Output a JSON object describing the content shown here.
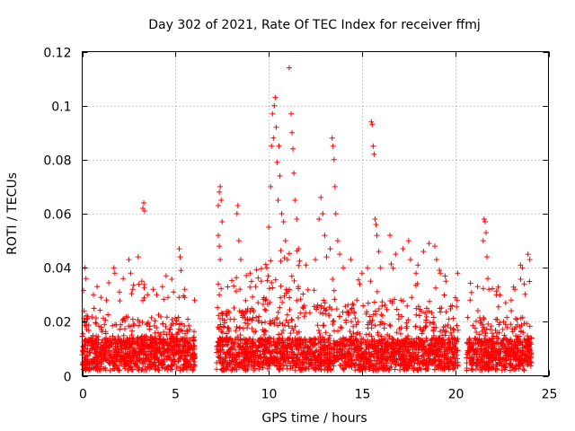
{
  "chart_data": {
    "type": "scatter",
    "title": "Day 302 of 2021, Rate Of TEC Index for receiver ffmj",
    "xlabel": "GPS time / hours",
    "ylabel": "ROTI / TECUs",
    "xlim": [
      0,
      25
    ],
    "ylim": [
      0,
      0.12
    ],
    "x_ticks": [
      0,
      5,
      10,
      15,
      20,
      25
    ],
    "x_tick_labels": [
      "0",
      "5",
      "10",
      "15",
      "20",
      "25"
    ],
    "y_ticks": [
      0,
      0.02,
      0.04,
      0.06,
      0.08,
      0.1,
      0.12
    ],
    "y_tick_labels": [
      "0",
      "0.02",
      "0.04",
      "0.06",
      "0.08",
      "0.1",
      "0.12"
    ],
    "grid": true,
    "marker": "plus",
    "color": "#ff0000",
    "series": [
      {
        "name": "ROTI",
        "segments": [
          {
            "start": 0.0,
            "end": 6.05
          },
          {
            "start": 7.2,
            "end": 20.15
          },
          {
            "start": 20.6,
            "end": 24.1
          }
        ],
        "points": [
          [
            0.1,
            0.024
          ],
          [
            0.15,
            0.04
          ],
          [
            0.2,
            0.036
          ],
          [
            0.3,
            0.022
          ],
          [
            0.6,
            0.03
          ],
          [
            0.8,
            0.033
          ],
          [
            1.0,
            0.029
          ],
          [
            1.3,
            0.028
          ],
          [
            1.7,
            0.04
          ],
          [
            1.75,
            0.038
          ],
          [
            2.0,
            0.031
          ],
          [
            2.2,
            0.036
          ],
          [
            2.5,
            0.043
          ],
          [
            2.6,
            0.038
          ],
          [
            2.7,
            0.032
          ],
          [
            3.0,
            0.044
          ],
          [
            3.2,
            0.035
          ],
          [
            3.25,
            0.062
          ],
          [
            3.3,
            0.064
          ],
          [
            3.35,
            0.061
          ],
          [
            3.5,
            0.03
          ],
          [
            3.8,
            0.032
          ],
          [
            4.0,
            0.03
          ],
          [
            4.3,
            0.033
          ],
          [
            4.5,
            0.037
          ],
          [
            4.6,
            0.029
          ],
          [
            4.9,
            0.031
          ],
          [
            5.2,
            0.047
          ],
          [
            5.25,
            0.044
          ],
          [
            5.3,
            0.039
          ],
          [
            5.5,
            0.029
          ],
          [
            7.3,
            0.063
          ],
          [
            7.35,
            0.068
          ],
          [
            7.4,
            0.07
          ],
          [
            7.45,
            0.065
          ],
          [
            7.3,
            0.052
          ],
          [
            7.35,
            0.048
          ],
          [
            7.4,
            0.043
          ],
          [
            7.5,
            0.057
          ],
          [
            7.3,
            0.034
          ],
          [
            8.3,
            0.06
          ],
          [
            8.35,
            0.063
          ],
          [
            8.4,
            0.05
          ],
          [
            8.5,
            0.043
          ],
          [
            9.0,
            0.038
          ],
          [
            9.3,
            0.033
          ],
          [
            9.6,
            0.035
          ],
          [
            9.9,
            0.04
          ],
          [
            10.0,
            0.055
          ],
          [
            10.1,
            0.07
          ],
          [
            10.15,
            0.085
          ],
          [
            10.2,
            0.097
          ],
          [
            10.25,
            0.088
          ],
          [
            10.3,
            0.1
          ],
          [
            10.35,
            0.103
          ],
          [
            10.4,
            0.092
          ],
          [
            10.45,
            0.079
          ],
          [
            10.5,
            0.065
          ],
          [
            10.55,
            0.085
          ],
          [
            10.6,
            0.074
          ],
          [
            10.7,
            0.06
          ],
          [
            10.8,
            0.057
          ],
          [
            10.9,
            0.05
          ],
          [
            11.0,
            0.043
          ],
          [
            11.1,
            0.114
          ],
          [
            11.2,
            0.097
          ],
          [
            11.25,
            0.09
          ],
          [
            11.3,
            0.084
          ],
          [
            11.35,
            0.075
          ],
          [
            11.4,
            0.065
          ],
          [
            11.5,
            0.058
          ],
          [
            11.6,
            0.047
          ],
          [
            12.0,
            0.041
          ],
          [
            12.5,
            0.043
          ],
          [
            12.7,
            0.058
          ],
          [
            12.8,
            0.066
          ],
          [
            12.9,
            0.06
          ],
          [
            13.0,
            0.052
          ],
          [
            13.1,
            0.044
          ],
          [
            13.3,
            0.047
          ],
          [
            13.4,
            0.088
          ],
          [
            13.45,
            0.085
          ],
          [
            13.5,
            0.08
          ],
          [
            13.55,
            0.07
          ],
          [
            13.6,
            0.06
          ],
          [
            13.7,
            0.05
          ],
          [
            13.8,
            0.045
          ],
          [
            14.0,
            0.04
          ],
          [
            14.4,
            0.043
          ],
          [
            15.0,
            0.038
          ],
          [
            15.3,
            0.04
          ],
          [
            15.5,
            0.094
          ],
          [
            15.55,
            0.093
          ],
          [
            15.6,
            0.085
          ],
          [
            15.65,
            0.082
          ],
          [
            15.7,
            0.058
          ],
          [
            15.75,
            0.056
          ],
          [
            15.8,
            0.052
          ],
          [
            15.9,
            0.046
          ],
          [
            16.0,
            0.04
          ],
          [
            16.5,
            0.052
          ],
          [
            16.8,
            0.045
          ],
          [
            17.2,
            0.047
          ],
          [
            17.5,
            0.05
          ],
          [
            17.6,
            0.043
          ],
          [
            17.9,
            0.038
          ],
          [
            18.0,
            0.041
          ],
          [
            18.3,
            0.046
          ],
          [
            18.6,
            0.049
          ],
          [
            18.9,
            0.048
          ],
          [
            19.0,
            0.043
          ],
          [
            19.2,
            0.038
          ],
          [
            19.5,
            0.035
          ],
          [
            20.1,
            0.028
          ],
          [
            20.8,
            0.028
          ],
          [
            21.2,
            0.033
          ],
          [
            21.5,
            0.05
          ],
          [
            21.55,
            0.058
          ],
          [
            21.6,
            0.057
          ],
          [
            21.65,
            0.053
          ],
          [
            21.7,
            0.044
          ],
          [
            21.75,
            0.036
          ],
          [
            21.8,
            0.032
          ],
          [
            22.2,
            0.03
          ],
          [
            22.7,
            0.027
          ],
          [
            23.0,
            0.028
          ],
          [
            23.2,
            0.032
          ],
          [
            23.5,
            0.041
          ],
          [
            23.6,
            0.04
          ],
          [
            23.7,
            0.034
          ],
          [
            23.9,
            0.045
          ],
          [
            24.0,
            0.043
          ]
        ]
      }
    ]
  }
}
